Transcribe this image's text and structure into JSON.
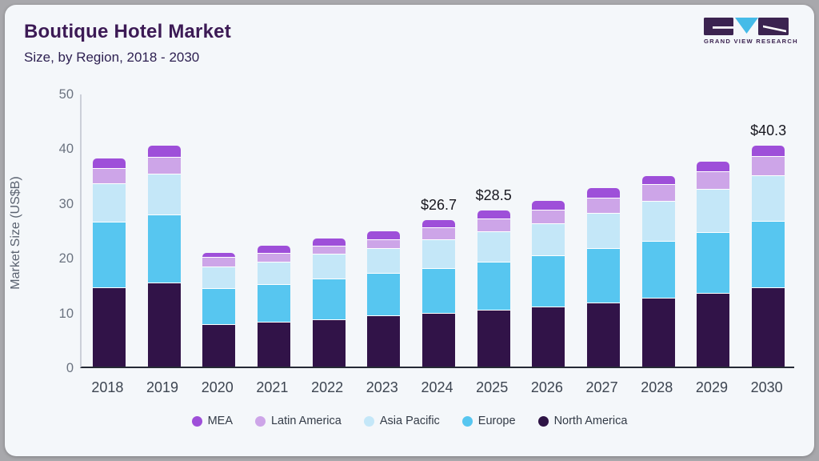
{
  "page": {
    "outer_background": "#a8a8ac",
    "card_background": "#f4f7fa"
  },
  "header": {
    "title": "Boutique Hotel Market",
    "subtitle": "Size, by Region, 2018 - 2030"
  },
  "logo": {
    "brand": "GRAND VIEW RESEARCH",
    "purple": "#3b2350",
    "cyan": "#45bbe8"
  },
  "chart_data": {
    "type": "bar",
    "stacked": true,
    "title": "Boutique Hotel Market Size, by Region, 2018 - 2030",
    "xlabel": "",
    "ylabel": "Market Size (US$B)",
    "ylim": [
      0,
      50
    ],
    "yticks": [
      0,
      10,
      20,
      30,
      40,
      50
    ],
    "grid": false,
    "legend_position": "bottom",
    "categories": [
      "2018",
      "2019",
      "2020",
      "2021",
      "2022",
      "2023",
      "2024",
      "2025",
      "2026",
      "2027",
      "2028",
      "2029",
      "2030"
    ],
    "series": [
      {
        "name": "North America",
        "color": "#311348",
        "values": [
          14.5,
          15.3,
          7.8,
          8.2,
          8.6,
          9.3,
          9.8,
          10.4,
          11.0,
          11.7,
          12.6,
          13.4,
          14.4
        ]
      },
      {
        "name": "Europe",
        "color": "#57c6f0",
        "values": [
          12.0,
          12.5,
          6.6,
          6.8,
          7.5,
          7.8,
          8.2,
          8.7,
          9.3,
          9.9,
          10.4,
          11.2,
          12.2
        ]
      },
      {
        "name": "Asia Pacific",
        "color": "#c4e7f8",
        "values": [
          7.0,
          7.5,
          3.9,
          4.1,
          4.5,
          4.6,
          5.3,
          5.6,
          5.9,
          6.5,
          7.3,
          7.9,
          8.3
        ]
      },
      {
        "name": "Latin America",
        "color": "#cda5e8",
        "values": [
          2.7,
          3.0,
          1.7,
          1.6,
          1.5,
          1.6,
          2.1,
          2.3,
          2.5,
          2.8,
          3.1,
          3.2,
          3.6
        ]
      },
      {
        "name": "MEA",
        "color": "#9e4fd9",
        "values": [
          1.8,
          2.0,
          0.8,
          1.4,
          1.3,
          1.4,
          1.3,
          1.5,
          1.5,
          1.7,
          1.4,
          1.7,
          1.8
        ]
      }
    ],
    "totals": [
      38.0,
      40.3,
      20.8,
      22.1,
      23.4,
      24.7,
      26.7,
      28.5,
      30.2,
      32.6,
      34.8,
      37.4,
      40.3
    ],
    "annotations": [
      {
        "category": "2024",
        "label": "$26.7"
      },
      {
        "category": "2025",
        "label": "$28.5"
      },
      {
        "category": "2030",
        "label": "$40.3"
      }
    ]
  },
  "legend": {
    "items": [
      {
        "label": "MEA",
        "color": "#9e4fd9"
      },
      {
        "label": "Latin America",
        "color": "#cda5e8"
      },
      {
        "label": "Asia Pacific",
        "color": "#c4e7f8"
      },
      {
        "label": "Europe",
        "color": "#57c6f0"
      },
      {
        "label": "North America",
        "color": "#2e1445"
      }
    ]
  }
}
